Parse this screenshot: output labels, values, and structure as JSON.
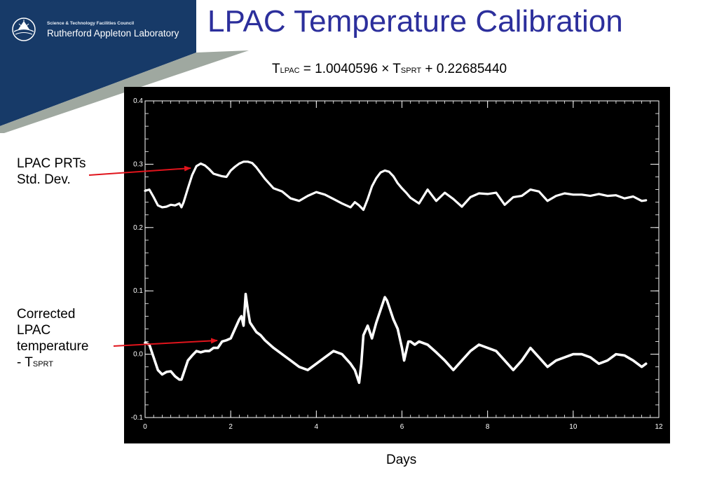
{
  "header": {
    "org_line1": "Science & Technology Facilities Council",
    "org_line2": "Rutherford Appleton Laboratory",
    "title": "LPAC Temperature Calibration"
  },
  "equation": {
    "lhs_var": "T",
    "lhs_sub": "LPAC",
    "rhs_text": " = 1.0040596 × T",
    "rhs_sub": "SPRT",
    "rhs_const": " + 0.22685440"
  },
  "annotations": {
    "upper_line1": "LPAC PRTs",
    "upper_line2": "Std. Dev.",
    "lower_line1": "Corrected",
    "lower_line2": "LPAC",
    "lower_line3": "temperature",
    "lower_line4_prefix": "- T",
    "lower_line4_sub": "SPRT"
  },
  "colors": {
    "banner_navy": "#173a68",
    "banner_stripe": "#9fa8a0",
    "title": "#2c2f9c",
    "arrow": "#e0141c",
    "plot_bg": "#000000",
    "plot_fg": "#ffffff"
  },
  "chart_data": {
    "type": "line",
    "xlabel": "Days",
    "ylabel": "",
    "xlim": [
      0,
      12
    ],
    "ylim": [
      -0.1,
      0.4
    ],
    "xticks": [
      0,
      2,
      4,
      6,
      8,
      10,
      12
    ],
    "xtick_labels": [
      "0",
      "2",
      "4",
      "6",
      "8",
      "10",
      "12"
    ],
    "yticks": [
      -0.1,
      0.0,
      0.1,
      0.2,
      0.3,
      0.4
    ],
    "ytick_labels": [
      "-0.1",
      "0.0",
      "0.1",
      "0.2",
      "0.3",
      "0.4"
    ],
    "grid": false,
    "series": [
      {
        "x": [
          0,
          0.1,
          0.2,
          0.3,
          0.4,
          0.5,
          0.6,
          0.7,
          0.8,
          0.85,
          0.9,
          1.0,
          1.1,
          1.2,
          1.3,
          1.4,
          1.5,
          1.6,
          1.7,
          1.8,
          1.9,
          2.0,
          2.1,
          2.2,
          2.3,
          2.4,
          2.5,
          2.6,
          2.7,
          2.8,
          3.0,
          3.2,
          3.4,
          3.6,
          3.8,
          4.0,
          4.2,
          4.4,
          4.6,
          4.8,
          4.9,
          5.0,
          5.1,
          5.2,
          5.3,
          5.4,
          5.5,
          5.6,
          5.7,
          5.8,
          5.9,
          6.0,
          6.1,
          6.2,
          6.4,
          6.6,
          6.8,
          7.0,
          7.2,
          7.4,
          7.6,
          7.8,
          8.0,
          8.2,
          8.4,
          8.6,
          8.8,
          9.0,
          9.2,
          9.4,
          9.6,
          9.8,
          10.0,
          10.2,
          10.4,
          10.6,
          10.8,
          11.0,
          11.2,
          11.4,
          11.6,
          11.7
        ],
        "y": [
          0.258,
          0.26,
          0.248,
          0.235,
          0.232,
          0.233,
          0.236,
          0.235,
          0.238,
          0.232,
          0.24,
          0.262,
          0.283,
          0.297,
          0.301,
          0.298,
          0.292,
          0.285,
          0.283,
          0.281,
          0.28,
          0.29,
          0.296,
          0.301,
          0.304,
          0.304,
          0.302,
          0.295,
          0.286,
          0.277,
          0.262,
          0.257,
          0.246,
          0.242,
          0.25,
          0.256,
          0.252,
          0.245,
          0.238,
          0.232,
          0.24,
          0.235,
          0.228,
          0.245,
          0.265,
          0.278,
          0.287,
          0.29,
          0.288,
          0.281,
          0.27,
          0.262,
          0.255,
          0.247,
          0.238,
          0.26,
          0.242,
          0.255,
          0.245,
          0.233,
          0.248,
          0.254,
          0.253,
          0.255,
          0.236,
          0.248,
          0.25,
          0.26,
          0.257,
          0.242,
          0.25,
          0.254,
          0.252,
          0.252,
          0.25,
          0.253,
          0.25,
          0.251,
          0.246,
          0.249,
          0.242,
          0.243
        ]
      },
      {
        "x": [
          0,
          0.1,
          0.2,
          0.3,
          0.4,
          0.5,
          0.6,
          0.7,
          0.8,
          0.85,
          0.9,
          1.0,
          1.1,
          1.2,
          1.3,
          1.4,
          1.5,
          1.6,
          1.7,
          1.8,
          1.9,
          2.0,
          2.1,
          2.2,
          2.25,
          2.3,
          2.35,
          2.4,
          2.45,
          2.5,
          2.6,
          2.7,
          2.8,
          3.0,
          3.2,
          3.4,
          3.6,
          3.8,
          4.0,
          4.2,
          4.4,
          4.6,
          4.8,
          4.9,
          5.0,
          5.05,
          5.1,
          5.2,
          5.3,
          5.4,
          5.5,
          5.6,
          5.65,
          5.7,
          5.8,
          5.9,
          6.0,
          6.05,
          6.1,
          6.15,
          6.2,
          6.3,
          6.4,
          6.6,
          6.8,
          7.0,
          7.2,
          7.4,
          7.6,
          7.8,
          8.0,
          8.2,
          8.4,
          8.6,
          8.8,
          9.0,
          9.2,
          9.4,
          9.6,
          9.8,
          10.0,
          10.2,
          10.4,
          10.6,
          10.8,
          11.0,
          11.2,
          11.4,
          11.6,
          11.7
        ],
        "y": [
          0.018,
          0.015,
          -0.005,
          -0.025,
          -0.032,
          -0.028,
          -0.027,
          -0.035,
          -0.04,
          -0.04,
          -0.03,
          -0.01,
          -0.002,
          0.005,
          0.003,
          0.005,
          0.005,
          0.01,
          0.01,
          0.02,
          0.022,
          0.025,
          0.04,
          0.055,
          0.06,
          0.045,
          0.095,
          0.07,
          0.05,
          0.045,
          0.035,
          0.03,
          0.022,
          0.01,
          0.0,
          -0.01,
          -0.02,
          -0.025,
          -0.015,
          -0.005,
          0.005,
          0.0,
          -0.015,
          -0.025,
          -0.045,
          -0.015,
          0.03,
          0.045,
          0.025,
          0.05,
          0.07,
          0.09,
          0.085,
          0.075,
          0.055,
          0.04,
          0.01,
          -0.01,
          0.005,
          0.02,
          0.02,
          0.015,
          0.02,
          0.015,
          0.003,
          -0.01,
          -0.025,
          -0.01,
          0.005,
          0.015,
          0.01,
          0.005,
          -0.01,
          -0.025,
          -0.01,
          0.01,
          -0.005,
          -0.02,
          -0.01,
          -0.005,
          0.0,
          0.0,
          -0.005,
          -0.015,
          -0.01,
          0.0,
          -0.002,
          -0.01,
          -0.02,
          -0.015
        ]
      }
    ]
  }
}
